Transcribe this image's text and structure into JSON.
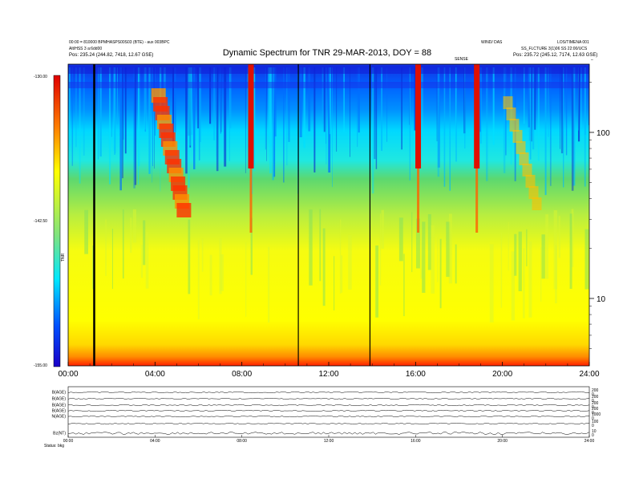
{
  "chart_data": {
    "type": "heatmap",
    "title": "Dynamic Spectrum for TNR 29-MAR-2013, DOY = 88",
    "header_left": [
      "00:00 = 810000 BPMHASPS00S03 (BTE) - aux 003BPC",
      "Alt/HSS 3 a:6dd00",
      "Pos:  235.24 (244.82, 7418, 12.67 GSE)"
    ],
    "header_right": [
      "WIND/ DAS",
      "LOS/TIMENA 001",
      "SS_FLCTURE 3(1)06 SS 22:00/UCS",
      "Pos:  235.72 (245.12, 7174, 12.63 GSE)"
    ],
    "header_mid": "SENSE",
    "x_ticks": [
      "00:00",
      "04:00",
      "08:00",
      "12:00",
      "16:00",
      "20:00",
      "24:00"
    ],
    "x_range": [
      0,
      24
    ],
    "y_ticks": [
      "100",
      "10"
    ],
    "y_scale": "log",
    "y_top_label": "–",
    "colorbar_ticks": [
      "-130.00",
      "-142.50",
      "-155.00"
    ],
    "colorbar_range": [
      -155,
      -130
    ],
    "colorbar_label": "TNR",
    "colormap": [
      "#1a00c8",
      "#0050ff",
      "#00e8ff",
      "#4cd95a",
      "#ffff00",
      "#ff8000",
      "#e00000"
    ],
    "bursts_hours": [
      {
        "t": 4.6,
        "intensity": "strong"
      },
      {
        "t": 8.4,
        "intensity": "strong"
      },
      {
        "t": 16.1,
        "intensity": "strong"
      },
      {
        "t": 18.8,
        "intensity": "strong"
      },
      {
        "t": 20.4,
        "intensity": "moderate"
      }
    ],
    "data_gaps_hours": [
      1.2,
      10.6,
      13.9
    ],
    "panels": [
      {
        "label": "B(AGE)",
        "right_ticks": [
          "200",
          "0"
        ]
      },
      {
        "label": "B(AGE)",
        "right_ticks": [
          "200",
          "0"
        ]
      },
      {
        "label": "B(AGE)",
        "right_ticks": [
          "200",
          "0"
        ]
      },
      {
        "label": "B(AGE)",
        "right_ticks": [
          "200",
          "0"
        ]
      },
      {
        "label": "N(AGE)",
        "right_ticks": [
          "1000",
          "0"
        ]
      },
      {
        "label": "",
        "right_ticks": [
          "100",
          "0"
        ]
      },
      {
        "label": "Bz(NT)",
        "right_ticks": [
          "10",
          "0"
        ]
      }
    ],
    "panel_x_ticks": [
      "00:00",
      "04:00",
      "08:00",
      "12:00",
      "16:00",
      "20:00",
      "24:00"
    ],
    "footer": "Status: bkg"
  }
}
